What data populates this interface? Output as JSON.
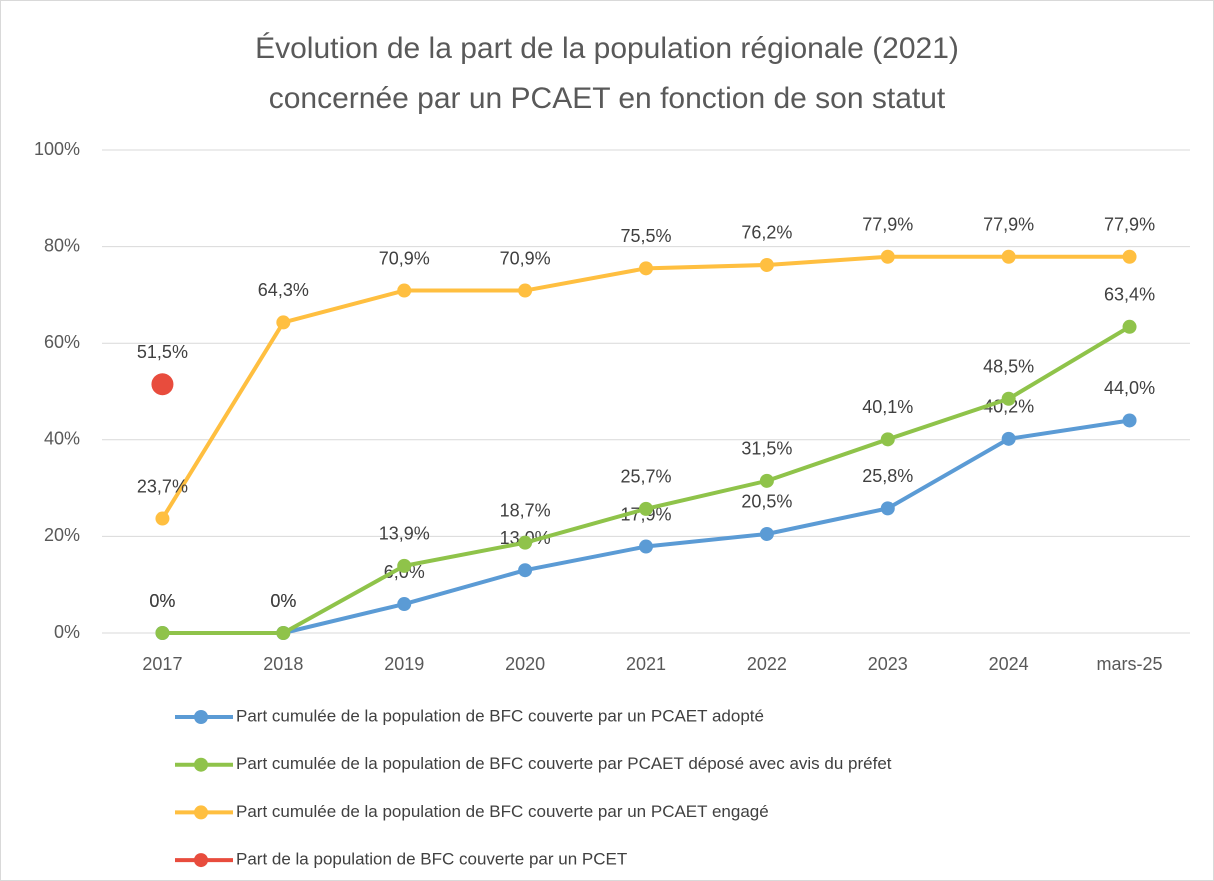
{
  "chart_data": {
    "type": "line",
    "title": [
      "Évolution de la part de la population régionale (2021)",
      "concernée par un PCAET en fonction de son statut"
    ],
    "categories": [
      "2017",
      "2018",
      "2019",
      "2020",
      "2021",
      "2022",
      "2023",
      "2024",
      "mars-25"
    ],
    "ylim": [
      0,
      100
    ],
    "yticks": [
      {
        "value": 0,
        "label": "0%"
      },
      {
        "value": 20,
        "label": "20%"
      },
      {
        "value": 40,
        "label": "40%"
      },
      {
        "value": 60,
        "label": "60%"
      },
      {
        "value": 80,
        "label": "80%"
      },
      {
        "value": 100,
        "label": "100%"
      }
    ],
    "grid": true,
    "legend": "bottom",
    "series": [
      {
        "name": "Part cumulée de la population de BFC couverte par un PCAET adopté",
        "color": "#5b9bd5",
        "values": [
          0,
          0,
          6.0,
          13.0,
          17.9,
          20.5,
          25.8,
          40.2,
          44.0
        ],
        "value_labels": [
          "0%",
          "0%",
          "6,0%",
          "13,0%",
          "17,9%",
          "20,5%",
          "25,8%",
          "40,2%",
          "44,0%"
        ]
      },
      {
        "name": "Part cumulée de la population de BFC couverte par PCAET déposé avec avis du préfet",
        "color": "#8fc34a",
        "values": [
          0,
          0,
          13.9,
          18.7,
          25.7,
          31.5,
          40.1,
          48.5,
          63.4
        ],
        "value_labels": [
          "0%",
          "0%",
          "13,9%",
          "18,7%",
          "25,7%",
          "31,5%",
          "40,1%",
          "48,5%",
          "63,4%"
        ]
      },
      {
        "name": "Part cumulée de la population de BFC couverte par un PCAET engagé",
        "color": "#ffbf40",
        "values": [
          23.7,
          64.3,
          70.9,
          70.9,
          75.5,
          76.2,
          77.9,
          77.9,
          77.9
        ],
        "value_labels": [
          "23,7%",
          "64,3%",
          "70,9%",
          "70,9%",
          "75,5%",
          "76,2%",
          "77,9%",
          "77,9%",
          "77,9%"
        ]
      },
      {
        "name": "Part de la population de BFC couverte par un PCET",
        "color": "#e84c3d",
        "values": [
          51.5,
          null,
          null,
          null,
          null,
          null,
          null,
          null,
          null
        ],
        "value_labels": [
          "51,5%",
          null,
          null,
          null,
          null,
          null,
          null,
          null,
          null
        ]
      }
    ]
  }
}
